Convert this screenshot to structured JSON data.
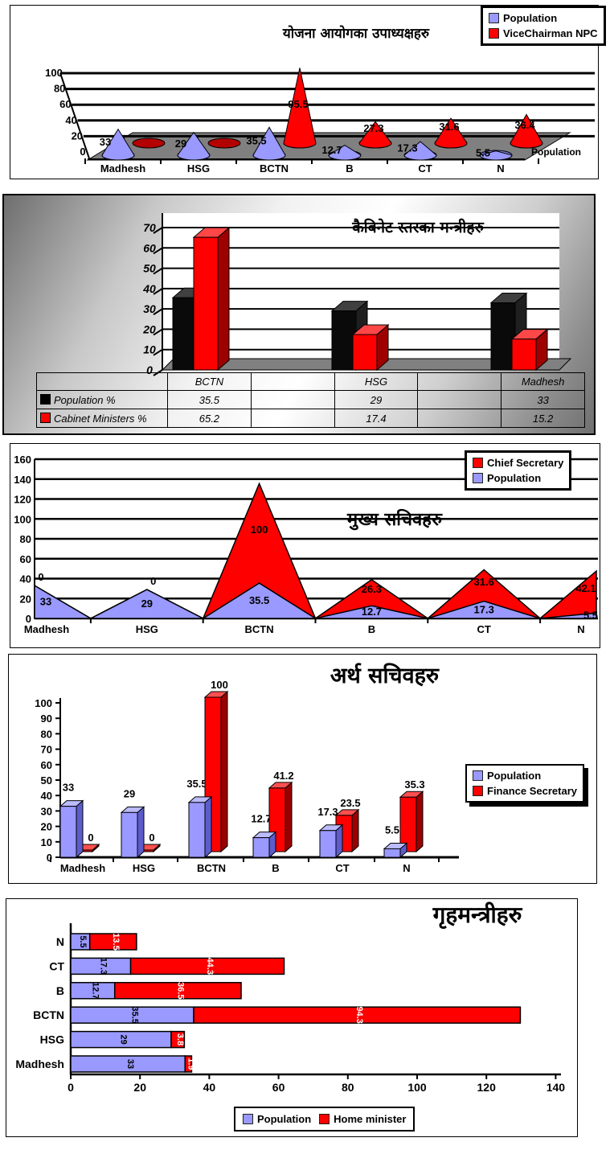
{
  "page": {
    "background": "#ffffff"
  },
  "colors": {
    "population_blue": "#9999FF",
    "series_red": "#FF0000",
    "series_black": "#000000",
    "floor_gray": "#808080"
  },
  "chart_data": [
    {
      "type": "bar",
      "style": "3d-cone",
      "title": "योजना आयोगका उपाध्यक्षहरु",
      "categories": [
        "Madhesh",
        "HSG",
        "BCTN",
        "B",
        "CT",
        "N"
      ],
      "series": [
        {
          "name": "Population",
          "color": "#9999FF",
          "values": [
            33,
            29,
            35.5,
            12.7,
            17.3,
            5.5
          ],
          "labels": [
            "33",
            "29",
            "35.5",
            "12.7",
            "17.3",
            "5.5"
          ]
        },
        {
          "name": "ViceChairman NPC",
          "color": "#FF0000",
          "values": [
            0,
            0,
            95.5,
            27.3,
            31.6,
            36.4
          ],
          "labels": [
            "",
            "",
            "95.5",
            "27.3",
            "31.6",
            "36.4"
          ]
        }
      ],
      "ylim": [
        0,
        100
      ],
      "y_ticks": [
        0,
        20,
        40,
        60,
        80,
        100
      ],
      "series_axis_label": "Population",
      "legend_position": "top-right",
      "grid": true
    },
    {
      "type": "bar",
      "style": "3d-column-with-data-table",
      "title": "कैबिनेट स्तरका मन्त्रीहरु",
      "categories": [
        "BCTN",
        "HSG",
        "Madhesh"
      ],
      "series": [
        {
          "name": "Population %",
          "color": "#000000",
          "values": [
            35.5,
            29,
            33
          ]
        },
        {
          "name": "Cabinet Ministers %",
          "color": "#FF0000",
          "values": [
            65.2,
            17.4,
            15.2
          ]
        }
      ],
      "ylim": [
        0,
        70
      ],
      "y_ticks": [
        0,
        10,
        20,
        30,
        40,
        50,
        60,
        70
      ],
      "grid": true,
      "data_table": {
        "columns": [
          "BCTN",
          "",
          "HSG",
          "",
          "Madhesh"
        ],
        "rows": [
          {
            "label": "Population %",
            "key_color": "#000000",
            "cells": [
              "35.5",
              "",
              "29",
              "",
              "33"
            ]
          },
          {
            "label": "Cabinet Ministers %",
            "key_color": "#FF0000",
            "cells": [
              "65.2",
              "",
              "17.4",
              "",
              "15.2"
            ]
          }
        ]
      }
    },
    {
      "type": "area",
      "style": "stacked-with-zero-points-between-categories",
      "title": "मुख्य सचिवहरु",
      "categories": [
        "Madhesh",
        "HSG",
        "BCTN",
        "B",
        "CT",
        "N"
      ],
      "series": [
        {
          "name": "Chief Secretary",
          "color": "#FF0000",
          "values": [
            0,
            0,
            100,
            26.3,
            31.6,
            42.1
          ],
          "labels": [
            "0",
            "0",
            "100",
            "26.3",
            "31.6",
            "42.1"
          ]
        },
        {
          "name": "Population",
          "color": "#9999FF",
          "values": [
            33,
            29,
            35.5,
            12.7,
            17.3,
            5.5
          ],
          "labels": [
            "33",
            "29",
            "35.5",
            "12.7",
            "17.3",
            "5.5"
          ]
        }
      ],
      "ylim": [
        0,
        160
      ],
      "y_ticks": [
        0,
        20,
        40,
        60,
        80,
        100,
        120,
        140,
        160
      ],
      "legend_position": "top-right",
      "grid": true
    },
    {
      "type": "bar",
      "style": "3d-column",
      "title": "अर्थ सचिवहरु",
      "categories": [
        "Madhesh",
        "HSG",
        "BCTN",
        "B",
        "CT",
        "N"
      ],
      "series": [
        {
          "name": "Population",
          "color": "#9999FF",
          "values": [
            33,
            29,
            35.5,
            12.7,
            17.3,
            5.5
          ],
          "labels": [
            "33",
            "29",
            "35.5",
            "12.7",
            "17.3",
            "5.5"
          ]
        },
        {
          "name": "Finance Secretary",
          "color": "#FF0000",
          "values": [
            0,
            0,
            100,
            41.2,
            23.5,
            35.3
          ],
          "labels": [
            "0",
            "0",
            "100",
            "41.2",
            "23.5",
            "35.3"
          ]
        }
      ],
      "ylim": [
        0,
        100
      ],
      "y_ticks": [
        0,
        10,
        20,
        30,
        40,
        50,
        60,
        70,
        80,
        90,
        100
      ],
      "legend_position": "right",
      "grid": false
    },
    {
      "type": "bar",
      "style": "horizontal-stacked",
      "title": "गृहमन्त्रीहरु",
      "categories_bottom_to_top": [
        "Madhesh",
        "HSG",
        "BCTN",
        "B",
        "CT",
        "N"
      ],
      "categories": [
        "Madhesh",
        "HSG",
        "BCTN",
        "B",
        "CT",
        "N"
      ],
      "series": [
        {
          "name": "Population",
          "color": "#9999FF",
          "values": [
            33,
            29,
            35.5,
            12.7,
            17.3,
            5.5
          ],
          "labels": [
            "33",
            "29",
            "35.5",
            "12.7",
            "17.3",
            "5.5"
          ]
        },
        {
          "name": "Home minister",
          "color": "#FF0000",
          "values": [
            1.9,
            3.8,
            94.3,
            36.5,
            44.3,
            13.5
          ],
          "labels": [
            "1.9",
            "3.8",
            "94.3",
            "36.5",
            "44.3",
            "13.5"
          ]
        }
      ],
      "xlim": [
        0,
        140
      ],
      "x_ticks": [
        0,
        20,
        40,
        60,
        80,
        100,
        120,
        140
      ],
      "legend_position": "bottom",
      "grid": false
    }
  ]
}
